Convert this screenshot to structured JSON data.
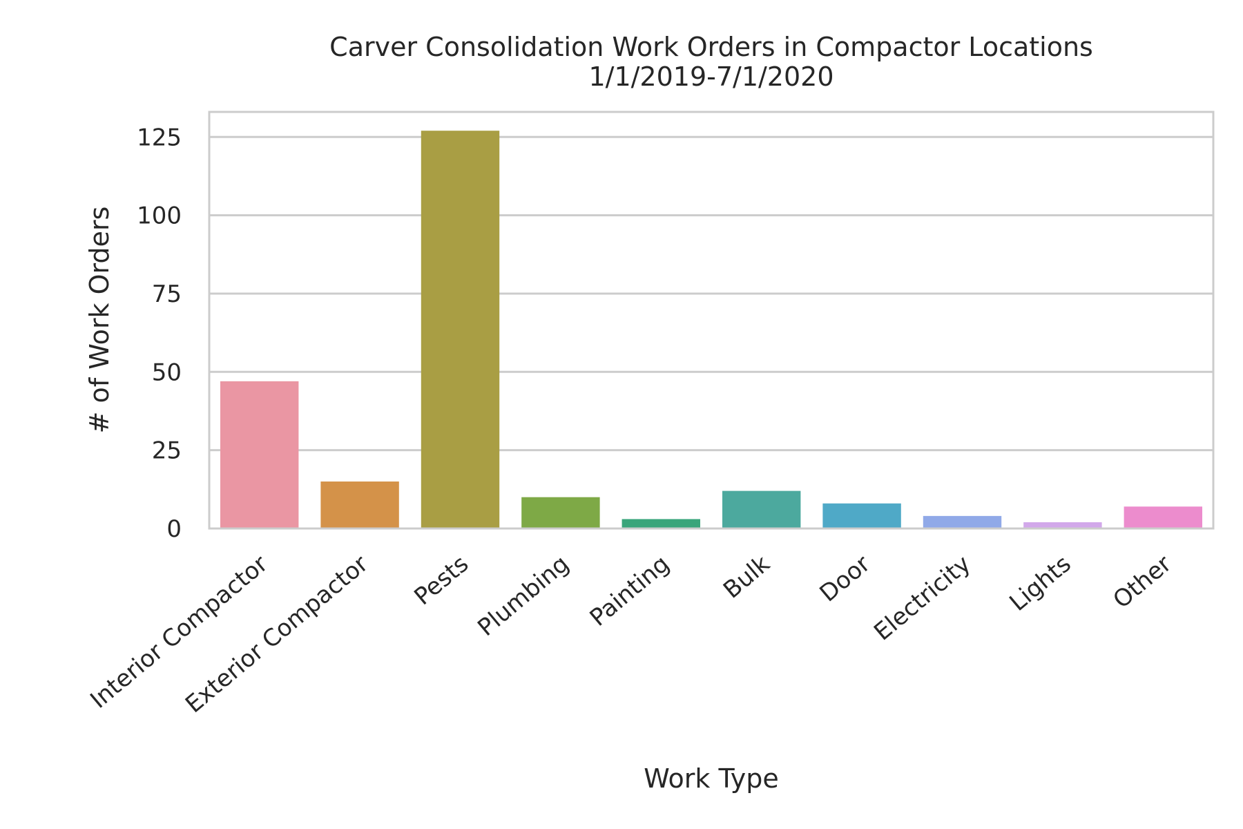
{
  "chart_data": {
    "type": "bar",
    "title": "Carver Consolidation Work Orders in Compactor Locations",
    "subtitle": "1/1/2019-7/1/2020",
    "xlabel": "Work Type",
    "ylabel": "# of Work Orders",
    "categories": [
      "Interior Compactor",
      "Exterior Compactor",
      "Pests",
      "Plumbing",
      "Painting",
      "Bulk",
      "Door",
      "Electricity",
      "Lights",
      "Other"
    ],
    "values": [
      47,
      15,
      127,
      10,
      3,
      12,
      8,
      4,
      2,
      7
    ],
    "colors": [
      "#ea96a3",
      "#d49249",
      "#a99e44",
      "#7ea946",
      "#3aa57b",
      "#4ca99e",
      "#4fa9c7",
      "#90a9e8",
      "#d2a8ea",
      "#ec8ccd"
    ],
    "yticks": [
      0,
      25,
      50,
      75,
      100,
      125
    ],
    "ylim": [
      0,
      133
    ],
    "grid": true,
    "legend": "none"
  }
}
